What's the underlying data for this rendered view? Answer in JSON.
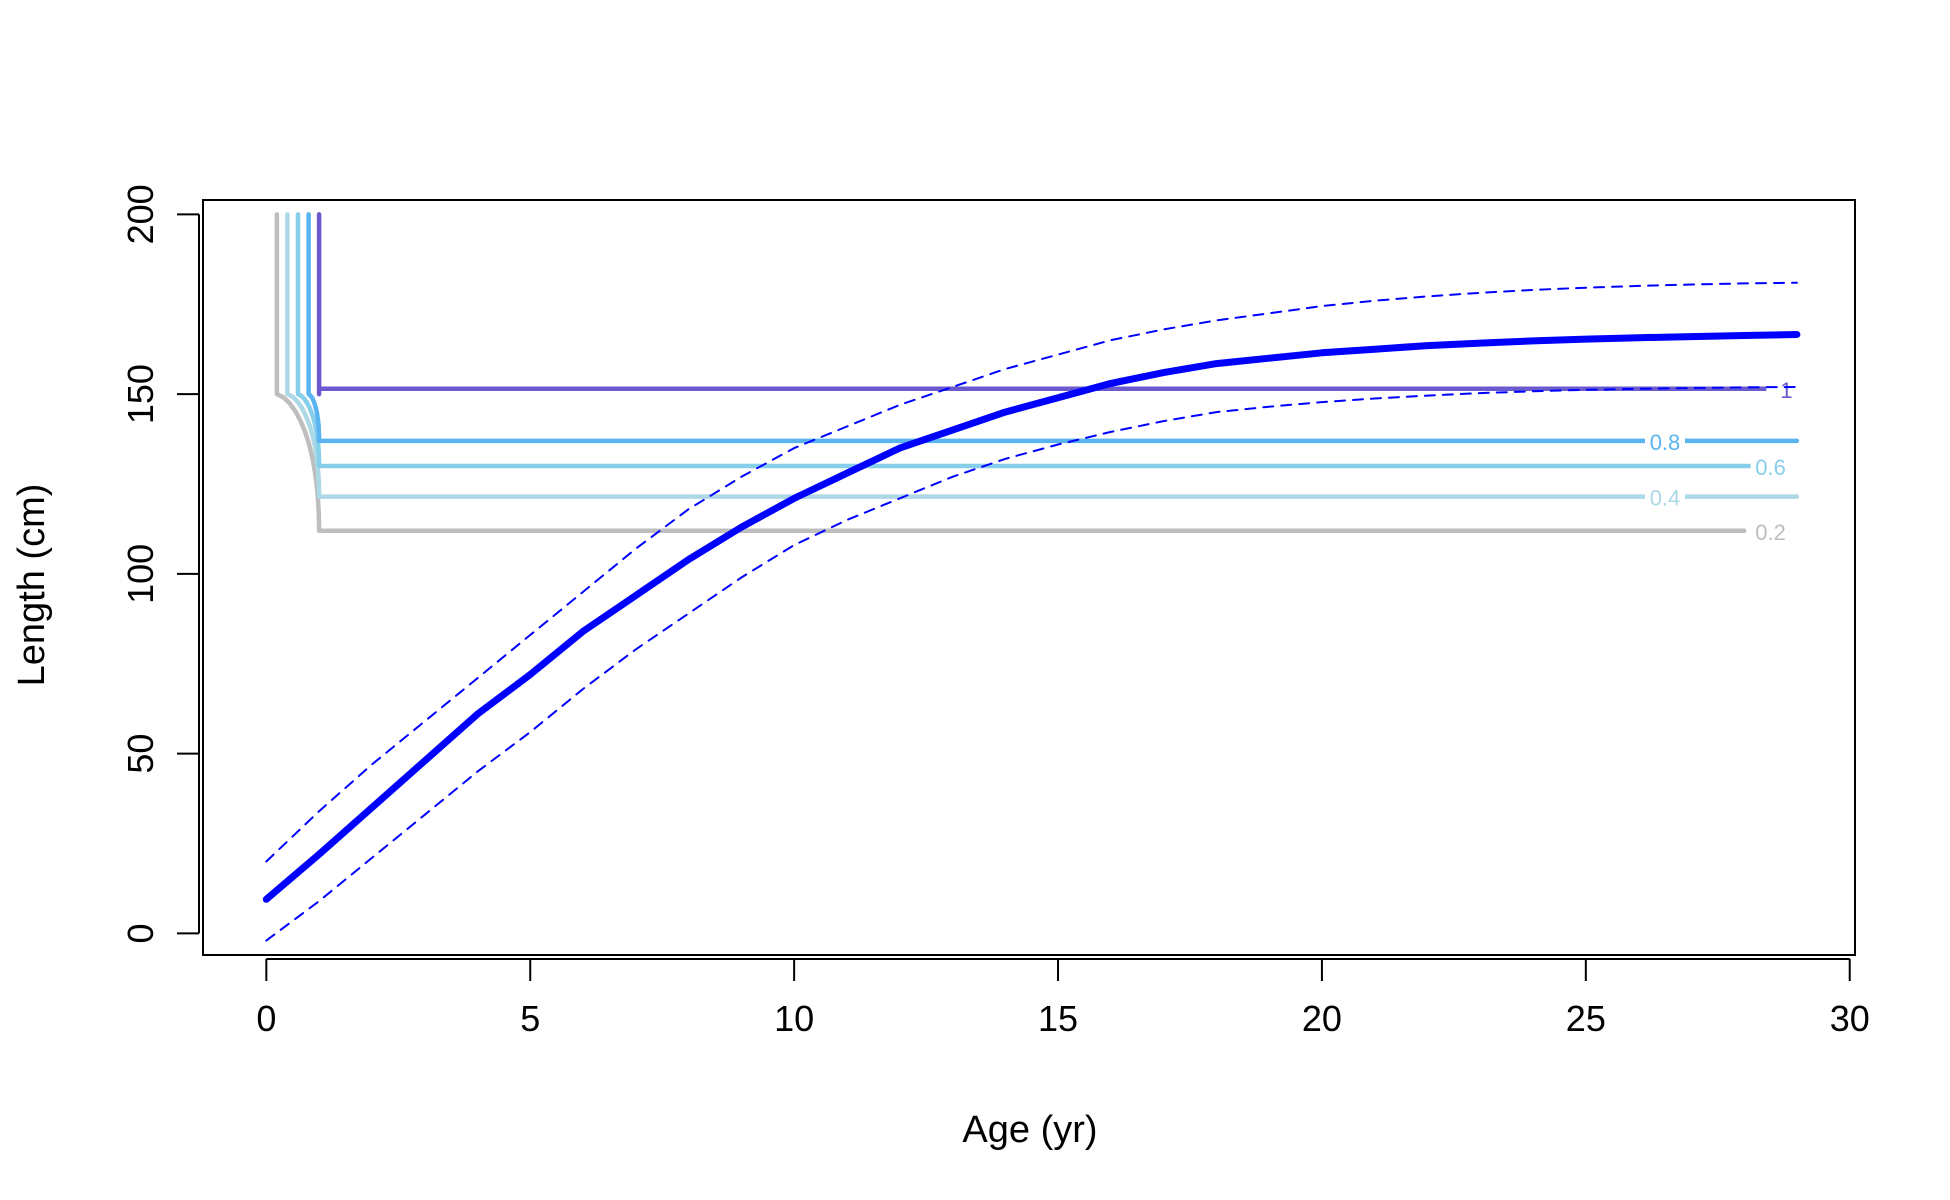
{
  "chart_data": {
    "type": "line",
    "xlabel": "Age (yr)",
    "ylabel": "Length (cm)",
    "xlim": [
      -1.2,
      30.1
    ],
    "ylim": [
      -6,
      204
    ],
    "xticks": [
      0,
      5,
      10,
      15,
      20,
      25,
      30
    ],
    "yticks": [
      0,
      50,
      100,
      150,
      200
    ],
    "xtick_labels": [
      "0",
      "5",
      "10",
      "15",
      "20",
      "25",
      "30"
    ],
    "ytick_labels": [
      "0",
      "50",
      "100",
      "150",
      "200"
    ],
    "grid": false,
    "series": [
      {
        "style": "solid",
        "color": "#0000ff",
        "points": [
          [
            0,
            9.5
          ],
          [
            1,
            22
          ],
          [
            2,
            35
          ],
          [
            3,
            48
          ],
          [
            4,
            61
          ],
          [
            5,
            72
          ],
          [
            6,
            84
          ],
          [
            7,
            94
          ],
          [
            8,
            104
          ],
          [
            9,
            113
          ],
          [
            10,
            121
          ],
          [
            11,
            128
          ],
          [
            12,
            135
          ],
          [
            13,
            140
          ],
          [
            14,
            145
          ],
          [
            15,
            149
          ],
          [
            16,
            153
          ],
          [
            17,
            156
          ],
          [
            18,
            158.5
          ],
          [
            19,
            160
          ],
          [
            20,
            161.5
          ],
          [
            21,
            162.5
          ],
          [
            22,
            163.5
          ],
          [
            23,
            164.2
          ],
          [
            24,
            164.8
          ],
          [
            25,
            165.3
          ],
          [
            26,
            165.7
          ],
          [
            27,
            166
          ],
          [
            28,
            166.3
          ],
          [
            29,
            166.6
          ]
        ]
      },
      {
        "style": "dashed",
        "color": "#0000ff",
        "points": [
          [
            0,
            20
          ],
          [
            1,
            34
          ],
          [
            2,
            47
          ],
          [
            3,
            59
          ],
          [
            4,
            71
          ],
          [
            5,
            83
          ],
          [
            6,
            95
          ],
          [
            7,
            107
          ],
          [
            8,
            118
          ],
          [
            9,
            127
          ],
          [
            10,
            135
          ],
          [
            11,
            141
          ],
          [
            12,
            147
          ],
          [
            13,
            152
          ],
          [
            14,
            157
          ],
          [
            15,
            161
          ],
          [
            16,
            165
          ],
          [
            17,
            168
          ],
          [
            18,
            170.5
          ],
          [
            19,
            172.5
          ],
          [
            20,
            174.5
          ],
          [
            21,
            176
          ],
          [
            22,
            177.2
          ],
          [
            23,
            178.2
          ],
          [
            24,
            179
          ],
          [
            25,
            179.6
          ],
          [
            26,
            180.1
          ],
          [
            27,
            180.5
          ],
          [
            28,
            180.8
          ],
          [
            29,
            181
          ]
        ]
      },
      {
        "style": "dashed",
        "color": "#0000ff",
        "points": [
          [
            0,
            -2
          ],
          [
            1,
            9
          ],
          [
            2,
            21
          ],
          [
            3,
            33
          ],
          [
            4,
            45
          ],
          [
            5,
            56
          ],
          [
            6,
            68
          ],
          [
            7,
            79
          ],
          [
            8,
            89
          ],
          [
            9,
            99
          ],
          [
            10,
            108
          ],
          [
            11,
            115
          ],
          [
            12,
            121
          ],
          [
            13,
            127
          ],
          [
            14,
            132
          ],
          [
            15,
            136
          ],
          [
            16,
            139.5
          ],
          [
            17,
            142.5
          ],
          [
            18,
            145
          ],
          [
            19,
            146.5
          ],
          [
            20,
            147.8
          ],
          [
            21,
            148.8
          ],
          [
            22,
            149.6
          ],
          [
            23,
            150.3
          ],
          [
            24,
            150.8
          ],
          [
            25,
            151.2
          ],
          [
            26,
            151.5
          ],
          [
            27,
            151.7
          ],
          [
            28,
            151.9
          ],
          [
            29,
            152
          ]
        ]
      }
    ],
    "contours": [
      {
        "label": "0.2",
        "level": 0.2,
        "color": "#bebebe",
        "x_start": 0.2,
        "x_end": 28,
        "y_plateau": 112,
        "label_x": 28.5
      },
      {
        "label": "0.4",
        "level": 0.4,
        "color": "#add8e6",
        "x_start": 0.4,
        "x_end": 29,
        "y_plateau": 121.5,
        "label_x": 26.5
      },
      {
        "label": "0.6",
        "level": 0.6,
        "color": "#87ceeb",
        "x_start": 0.6,
        "x_end": 28.3,
        "y_plateau": 130,
        "label_x": 28.5
      },
      {
        "label": "0.8",
        "level": 0.8,
        "color": "#5ab4f0",
        "x_start": 0.8,
        "x_end": 29,
        "y_plateau": 137,
        "label_x": 26.5
      },
      {
        "label": "1",
        "level": 1,
        "color": "#6a5acd",
        "x_start": 1.0,
        "x_end": 28.6,
        "y_plateau": 151.5,
        "label_x": 28.8
      }
    ]
  }
}
